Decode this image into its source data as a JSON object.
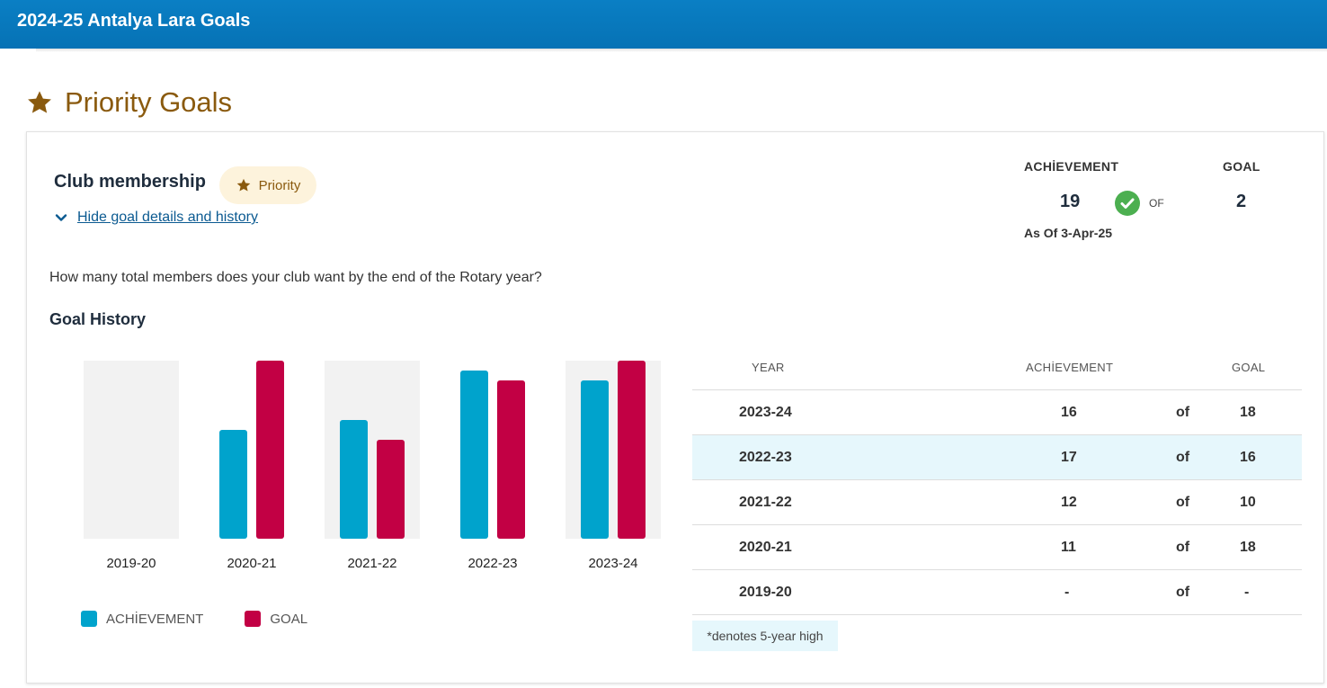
{
  "header": {
    "title": "2024-25 Antalya Lara Goals"
  },
  "section": {
    "title": "Priority Goals",
    "icon": "star-icon"
  },
  "goal": {
    "name": "Club membership",
    "badge": "Priority",
    "toggle_label": "Hide goal details and history",
    "question": "How many total members does your club want by the end of the Rotary year?",
    "achievement_label": "ACHİEVEMENT",
    "goal_label": "GOAL",
    "achievement_value": "19",
    "of_label": "OF",
    "goal_value": "2",
    "as_of": "As Of 3-Apr-25",
    "status_icon": "check-circle-icon"
  },
  "history": {
    "title": "Goal History",
    "legend": {
      "achievement": "ACHİEVEMENT",
      "goal": "GOAL"
    },
    "table": {
      "headers": {
        "year": "YEAR",
        "achievement": "ACHİEVEMENT",
        "goal": "GOAL"
      },
      "rows": [
        {
          "year": "2023-24",
          "achievement": "16",
          "of": "of",
          "goal": "18"
        },
        {
          "year": "2022-23",
          "achievement": "17",
          "of": "of",
          "goal": "16"
        },
        {
          "year": "2021-22",
          "achievement": "12",
          "of": "of",
          "goal": "10"
        },
        {
          "year": "2020-21",
          "achievement": "11",
          "of": "of",
          "goal": "18"
        },
        {
          "year": "2019-20",
          "achievement": "-",
          "of": "of",
          "goal": "-"
        }
      ]
    },
    "note": "*denotes 5-year high"
  },
  "colors": {
    "achievement": "#00a3cc",
    "goal": "#c20044",
    "band": "#f2f2f2",
    "brand": "#0672b5",
    "gold": "#8a5a0e"
  },
  "chart_data": {
    "type": "bar",
    "categories": [
      "2019-20",
      "2020-21",
      "2021-22",
      "2022-23",
      "2023-24"
    ],
    "series": [
      {
        "name": "ACHİEVEMENT",
        "values": [
          null,
          11,
          12,
          17,
          16
        ]
      },
      {
        "name": "GOAL",
        "values": [
          null,
          18,
          10,
          16,
          18
        ]
      }
    ],
    "ylim": [
      0,
      18
    ],
    "xlabel": "",
    "ylabel": "",
    "legend": "bottom-left",
    "grid": false
  }
}
